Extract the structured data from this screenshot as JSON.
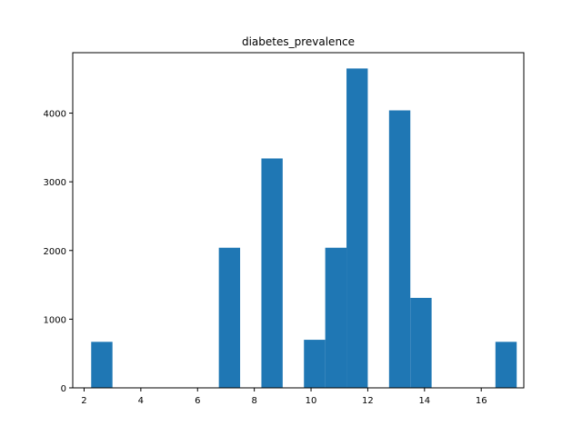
{
  "chart_data": {
    "type": "bar",
    "title": "diabetes_prevalence",
    "xlabel": "",
    "ylabel": "",
    "xlim": [
      1.6,
      17.5
    ],
    "ylim": [
      0,
      4880
    ],
    "x_ticks": [
      2,
      4,
      6,
      8,
      10,
      12,
      14,
      16
    ],
    "y_ticks": [
      0,
      1000,
      2000,
      3000,
      4000
    ],
    "bar_color": "#1f77b4",
    "grid": false,
    "legend": "none",
    "bins": [
      {
        "x0": 2.25,
        "x1": 3.0,
        "value": 670
      },
      {
        "x0": 3.0,
        "x1": 3.75,
        "value": 0
      },
      {
        "x0": 3.75,
        "x1": 4.5,
        "value": 0
      },
      {
        "x0": 4.5,
        "x1": 5.25,
        "value": 0
      },
      {
        "x0": 5.25,
        "x1": 6.0,
        "value": 0
      },
      {
        "x0": 6.0,
        "x1": 6.75,
        "value": 0
      },
      {
        "x0": 6.75,
        "x1": 7.5,
        "value": 2040
      },
      {
        "x0": 7.5,
        "x1": 8.25,
        "value": 0
      },
      {
        "x0": 8.25,
        "x1": 9.0,
        "value": 3340
      },
      {
        "x0": 9.0,
        "x1": 9.75,
        "value": 0
      },
      {
        "x0": 9.75,
        "x1": 10.5,
        "value": 700
      },
      {
        "x0": 10.5,
        "x1": 11.25,
        "value": 2040
      },
      {
        "x0": 11.25,
        "x1": 12.0,
        "value": 4650
      },
      {
        "x0": 12.0,
        "x1": 12.75,
        "value": 0
      },
      {
        "x0": 12.75,
        "x1": 13.5,
        "value": 4040
      },
      {
        "x0": 13.5,
        "x1": 14.25,
        "value": 1310
      },
      {
        "x0": 14.25,
        "x1": 15.0,
        "value": 0
      },
      {
        "x0": 15.0,
        "x1": 15.75,
        "value": 0
      },
      {
        "x0": 15.75,
        "x1": 16.5,
        "value": 0
      },
      {
        "x0": 16.5,
        "x1": 17.25,
        "value": 670
      }
    ]
  }
}
